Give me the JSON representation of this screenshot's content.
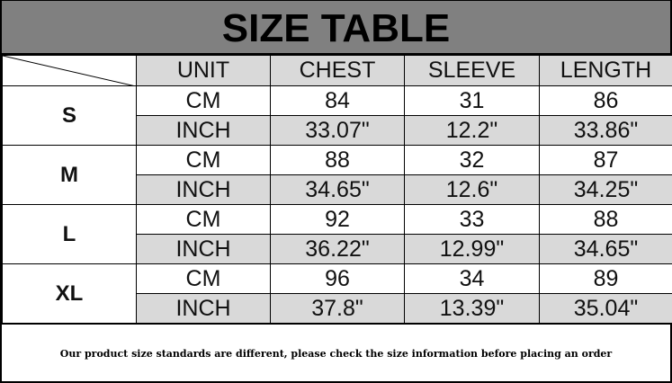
{
  "title": "SIZE TABLE",
  "columns": [
    "UNIT",
    "CHEST",
    "SLEEVE",
    "LENGTH"
  ],
  "sizes": [
    {
      "size": "S",
      "rows": [
        {
          "unit": "CM",
          "chest": "84",
          "sleeve": "31",
          "length": "86"
        },
        {
          "unit": "INCH",
          "chest": "33.07\"",
          "sleeve": "12.2\"",
          "length": "33.86\""
        }
      ]
    },
    {
      "size": "M",
      "rows": [
        {
          "unit": "CM",
          "chest": "88",
          "sleeve": "32",
          "length": "87"
        },
        {
          "unit": "INCH",
          "chest": "34.65\"",
          "sleeve": "12.6\"",
          "length": "34.25\""
        }
      ]
    },
    {
      "size": "L",
      "rows": [
        {
          "unit": "CM",
          "chest": "92",
          "sleeve": "33",
          "length": "88"
        },
        {
          "unit": "INCH",
          "chest": "36.22\"",
          "sleeve": "12.99\"",
          "length": "34.65\""
        }
      ]
    },
    {
      "size": "XL",
      "rows": [
        {
          "unit": "CM",
          "chest": "96",
          "sleeve": "34",
          "length": "89"
        },
        {
          "unit": "INCH",
          "chest": "37.8\"",
          "sleeve": "13.39\"",
          "length": "35.04\""
        }
      ]
    }
  ],
  "footer": "Our product size standards are different, please check the size information before placing an order"
}
